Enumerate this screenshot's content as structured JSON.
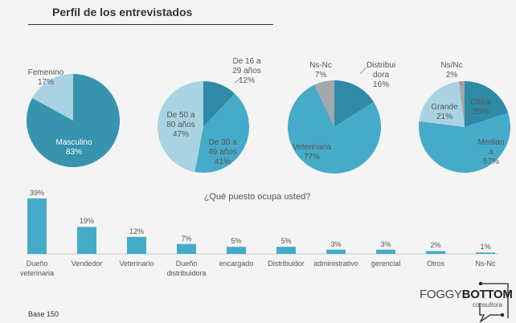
{
  "title": "Perfil de los entrevistados",
  "base": "Base 150",
  "logo": {
    "light": "FOGGY",
    "bold": "BOTTOM",
    "sub": "consultora"
  },
  "colors": {
    "dark": "#2e8aa6",
    "mid": "#46abc9",
    "light": "#a9d3e2",
    "gray": "#a5a7a9",
    "pie1main": "#3793ae",
    "bar": "#46abc9"
  },
  "chart_data": [
    {
      "type": "pie",
      "slices": [
        {
          "label": "Masculino",
          "value": 83,
          "text": "83%",
          "color": "pie1main"
        },
        {
          "label": "Femenino",
          "value": 17,
          "text": "17%",
          "color": "light"
        }
      ]
    },
    {
      "type": "pie",
      "slices": [
        {
          "label": "De 16 a 29 años",
          "value": 12,
          "text": "12%",
          "color": "dark"
        },
        {
          "label": "De 30 a 49 años",
          "value": 41,
          "text": "41%",
          "color": "mid"
        },
        {
          "label": "De 50 a 80 años",
          "value": 47,
          "text": "47%",
          "color": "light"
        }
      ]
    },
    {
      "type": "pie",
      "slices": [
        {
          "label": "Distribuidora",
          "value": 16,
          "text": "16%",
          "color": "dark"
        },
        {
          "label": "Veterinaria",
          "value": 77,
          "text": "77%",
          "color": "mid"
        },
        {
          "label": "Ns-Nc",
          "value": 7,
          "text": "7%",
          "color": "gray"
        }
      ]
    },
    {
      "type": "pie",
      "slices": [
        {
          "label": "Chica",
          "value": 20,
          "text": "20%",
          "color": "dark"
        },
        {
          "label": "Mediana",
          "value": 57,
          "text": "57%",
          "color": "mid"
        },
        {
          "label": "Grande",
          "value": 21,
          "text": "21%",
          "color": "light"
        },
        {
          "label": "Ns/Nc",
          "value": 2,
          "text": "2%",
          "color": "gray"
        }
      ]
    },
    {
      "type": "bar",
      "title": "¿Qué puesto ocupa usted?",
      "categories": [
        "Dueño veterinaria",
        "Vendedor",
        "Veterinario",
        "Dueño distribuidora",
        "encargado",
        "Distribuidor",
        "administrativo",
        "gerencial",
        "Otros",
        "Ns-Nc"
      ],
      "values": [
        39,
        19,
        12,
        7,
        5,
        5,
        3,
        3,
        2,
        1
      ],
      "labels": [
        "39%",
        "19%",
        "12%",
        "7%",
        "5%",
        "5%",
        "3%",
        "3%",
        "2%",
        "1%"
      ]
    }
  ]
}
